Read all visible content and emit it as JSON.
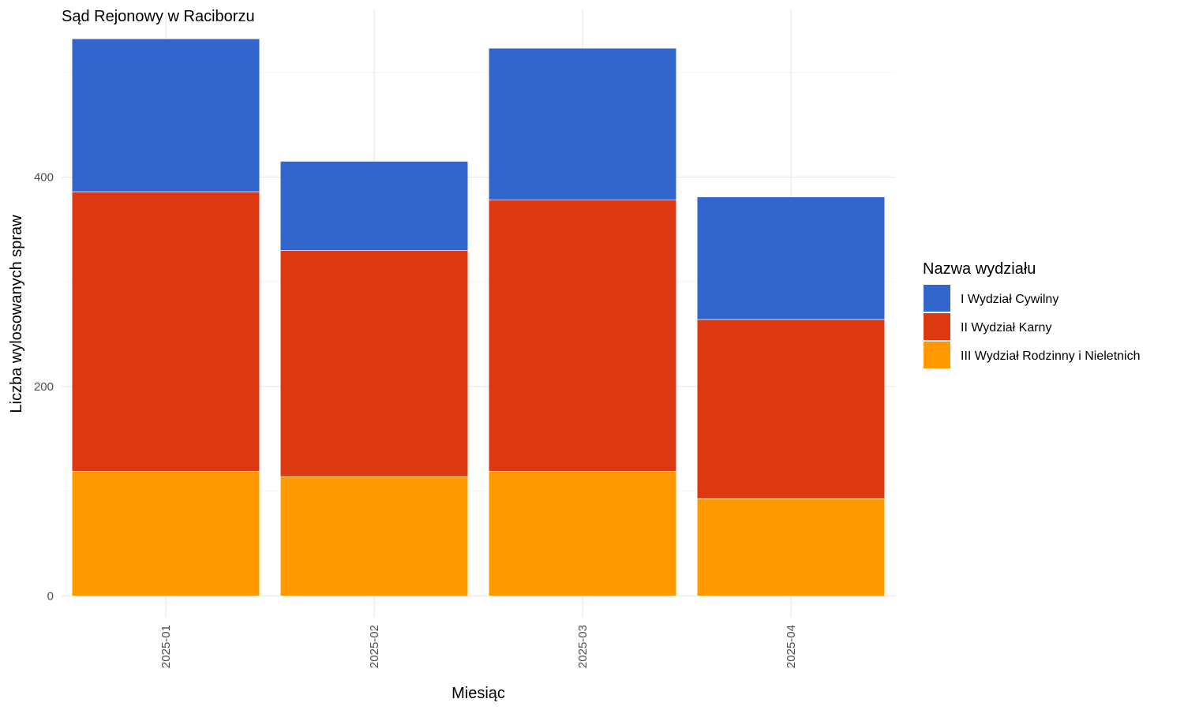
{
  "chart_data": {
    "type": "bar",
    "stacked": true,
    "title": "Sąd Rejonowy w Raciborzu",
    "xlabel": "Miesiąc",
    "ylabel": "Liczba wylosowanych spraw",
    "categories": [
      "2025-01",
      "2025-02",
      "2025-03",
      "2025-04"
    ],
    "ylim": [
      -20,
      560
    ],
    "yticks": [
      0,
      200,
      400
    ],
    "yticks_labels": [
      "0",
      "200",
      "400"
    ],
    "grid": true,
    "legend": {
      "title": "Nazwa wydziału",
      "position": "right"
    },
    "series": [
      {
        "name": "III Wydział Rodzinny i Nieletnich",
        "color": "#FF9900",
        "values": [
          119,
          114,
          119,
          93
        ]
      },
      {
        "name": "II Wydział Karny",
        "color": "#DC3912",
        "values": [
          267,
          216,
          259,
          171
        ]
      },
      {
        "name": "I Wydział Cywilny",
        "color": "#3366CC",
        "values": [
          146,
          85,
          145,
          117
        ]
      }
    ]
  }
}
